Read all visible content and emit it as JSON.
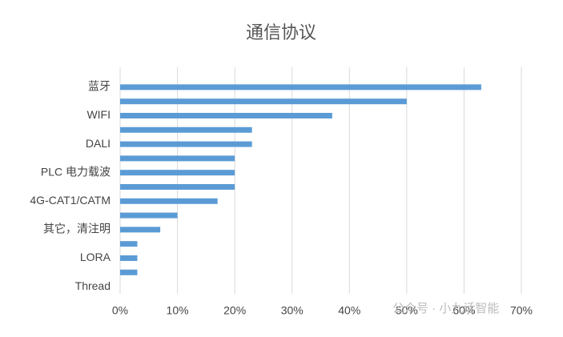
{
  "chart_data": {
    "type": "barh",
    "title": "通信协议",
    "categories": [
      "蓝牙",
      null,
      "WIFI",
      null,
      "DALI",
      null,
      "PLC 电力载波",
      null,
      "4G-CAT1/CATM",
      null,
      "其它，清注明",
      null,
      "LORA",
      null,
      "Thread"
    ],
    "values": [
      63,
      50,
      37,
      23,
      23,
      20,
      20,
      20,
      17,
      10,
      7,
      3,
      3,
      3,
      0
    ],
    "color": "#5b9bd5",
    "xlim": [
      0,
      70
    ],
    "xticks": [
      {
        "value": 0,
        "label": "0%"
      },
      {
        "value": 10,
        "label": "10%"
      },
      {
        "value": 20,
        "label": "20%"
      },
      {
        "value": 30,
        "label": "30%"
      },
      {
        "value": 40,
        "label": "40%"
      },
      {
        "value": 50,
        "label": "50%"
      },
      {
        "value": 60,
        "label": "60%"
      },
      {
        "value": 70,
        "label": "70%"
      }
    ],
    "grid": true,
    "watermark": "公众号 · 小九话智能"
  }
}
